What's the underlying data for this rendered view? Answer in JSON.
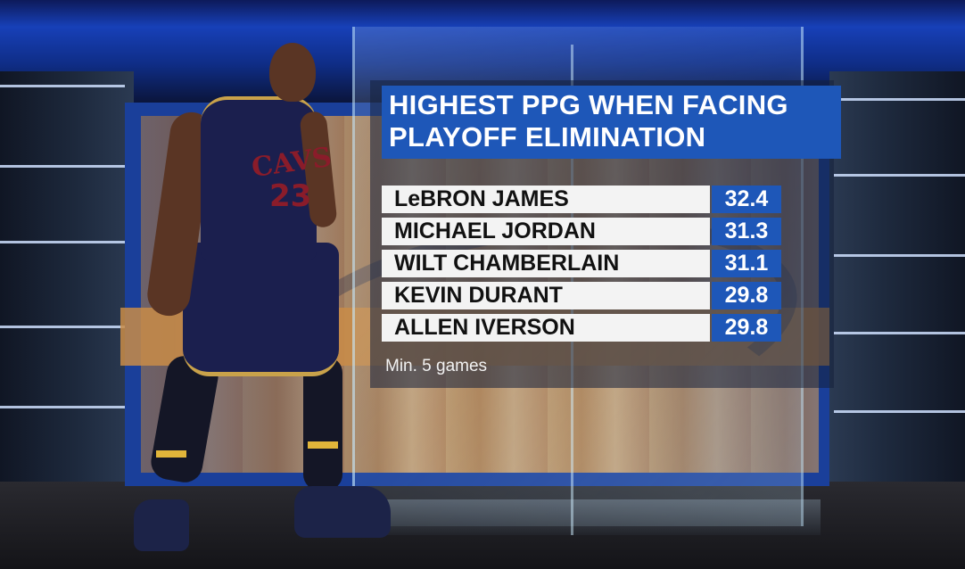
{
  "graphic": {
    "title_line1": "HIGHEST PPG WHEN FACING",
    "title_line2": "PLAYOFF ELIMINATION",
    "rows": [
      {
        "name": "LeBRON JAMES",
        "value": "32.4"
      },
      {
        "name": "MICHAEL JORDAN",
        "value": "31.3"
      },
      {
        "name": "WILT CHAMBERLAIN",
        "value": "31.1"
      },
      {
        "name": "KEVIN DURANT",
        "value": "29.8"
      },
      {
        "name": "ALLEN IVERSON",
        "value": "29.8"
      }
    ],
    "note": "Min. 5 games"
  },
  "player": {
    "jersey_text": "CAVS",
    "jersey_number": "23"
  },
  "colors": {
    "accent_blue": "#1e57b8",
    "row_background": "#f3f3f3",
    "jersey_navy": "#1b1f4e",
    "jersey_wine": "#8a1c2a",
    "jersey_gold": "#c9a24a"
  }
}
